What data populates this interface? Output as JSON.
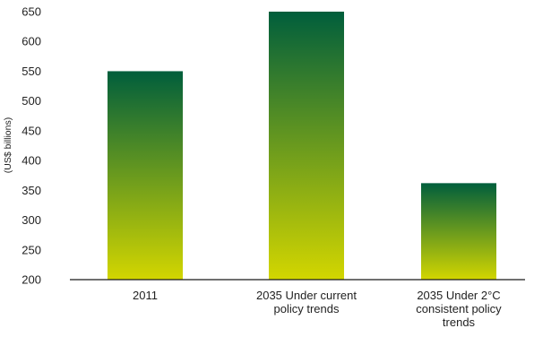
{
  "chart_data": {
    "type": "bar",
    "categories": [
      [
        "2011"
      ],
      [
        "2035 Under current",
        "policy trends"
      ],
      [
        "2035 Under 2°C",
        "consistent policy",
        "trends"
      ]
    ],
    "values": [
      550,
      650,
      362
    ],
    "xlabel": "",
    "ylabel": "(US$ billions)",
    "ylim": [
      200,
      650
    ],
    "yticks": [
      200,
      250,
      300,
      350,
      400,
      450,
      500,
      550,
      600,
      650
    ],
    "grid": false,
    "legend": "none",
    "colors": {
      "bar_top": "#005e3c",
      "bar_bottom": "#d3d600",
      "axis": "#1a1a1a",
      "text": "#222222"
    }
  }
}
